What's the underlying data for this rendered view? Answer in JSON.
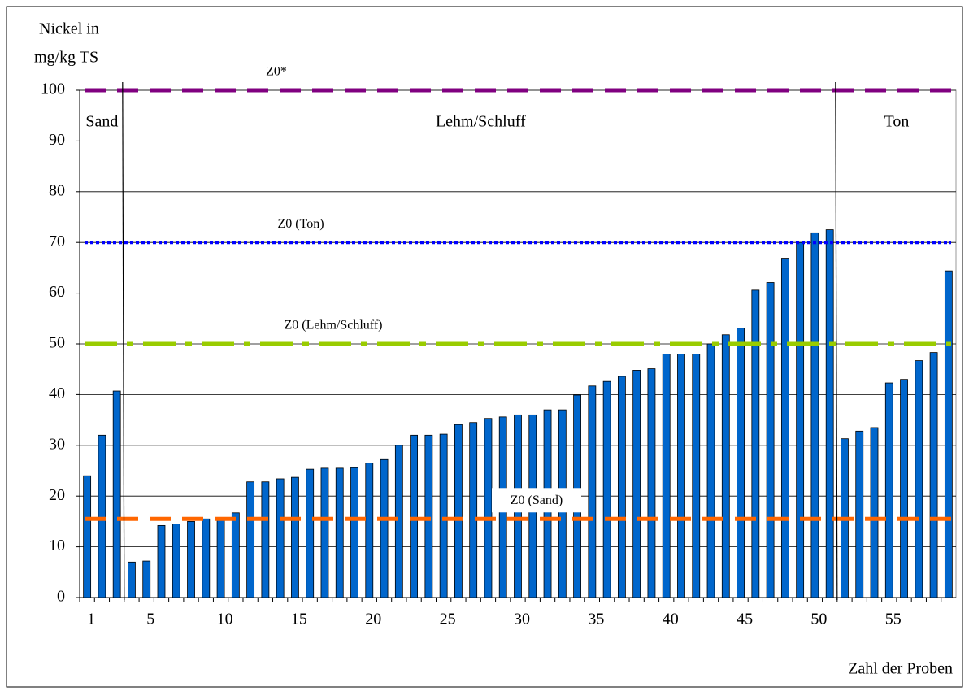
{
  "chart_data": {
    "type": "bar",
    "y_label": [
      "Nickel in",
      "mg/kg TS"
    ],
    "x_label": "Zahl der Proben",
    "categories": [
      "1",
      null,
      null,
      null,
      "5",
      null,
      null,
      null,
      null,
      "10",
      null,
      null,
      null,
      null,
      "15",
      null,
      null,
      null,
      null,
      "20",
      null,
      null,
      null,
      null,
      "25",
      null,
      null,
      null,
      null,
      "30",
      null,
      null,
      null,
      null,
      "35",
      null,
      null,
      null,
      null,
      "40",
      null,
      null,
      null,
      null,
      "45",
      null,
      null,
      null,
      null,
      "50",
      null,
      null,
      null,
      null,
      "55",
      null,
      null,
      null,
      null
    ],
    "values": [
      24,
      32,
      40.7,
      7,
      7.2,
      14.2,
      14.5,
      15,
      15.5,
      15.7,
      16.7,
      22.8,
      22.8,
      23.4,
      23.7,
      25.3,
      25.5,
      25.5,
      25.6,
      26.5,
      27.2,
      30,
      32,
      32,
      32.2,
      34.1,
      34.5,
      35.3,
      35.6,
      36,
      36,
      37,
      37,
      39.9,
      41.7,
      42.6,
      43.6,
      44.8,
      45.1,
      48,
      48,
      48,
      50,
      51.8,
      53.1,
      60.6,
      62.1,
      66.9,
      70,
      71.9,
      72.5,
      31.3,
      32.8,
      33.5,
      42.3,
      43,
      46.7,
      48.3,
      64.4
    ],
    "color": "#0066cc",
    "ylim": [
      0,
      100
    ],
    "yticks": [
      0,
      10,
      20,
      30,
      40,
      50,
      60,
      70,
      80,
      90,
      100
    ],
    "grid": true,
    "reference_lines": [
      {
        "label": "Z0*",
        "value": 100,
        "color": "#800080",
        "style": "dashed"
      },
      {
        "label": "Z0 (Ton)",
        "value": 70,
        "color": "#0000ff",
        "style": "dotted"
      },
      {
        "label": "Z0 (Lehm/Schluff)",
        "value": 50,
        "color": "#99cc00",
        "style": "dashdot"
      },
      {
        "label": "Z0 (Sand)",
        "value": 15.5,
        "color": "#ff6600",
        "style": "dashed"
      }
    ],
    "regions": [
      {
        "label": "Sand",
        "first": 1,
        "last": 3
      },
      {
        "label": "Lehm/Schluff",
        "first": 4,
        "last": 51
      },
      {
        "label": "Ton",
        "first": 52,
        "last": 59
      }
    ]
  }
}
